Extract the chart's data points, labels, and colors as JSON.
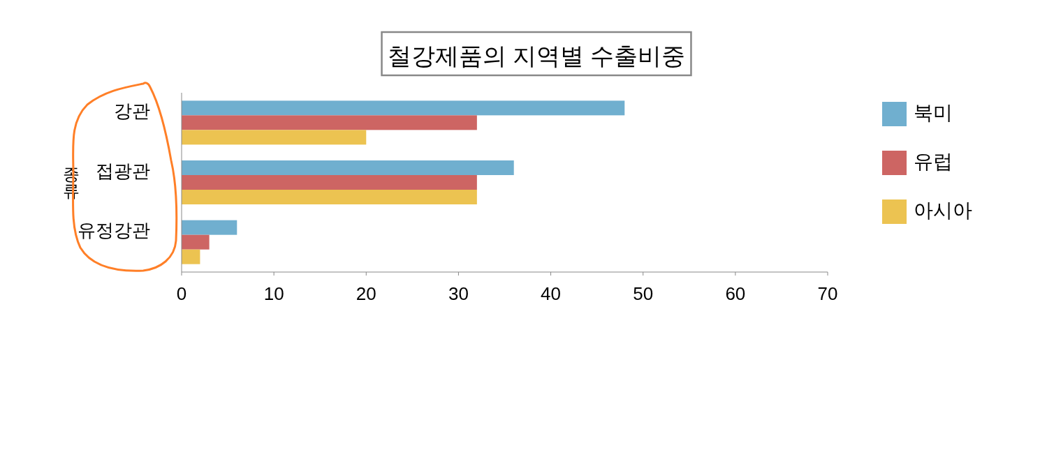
{
  "chart_data": {
    "type": "bar",
    "orientation": "horizontal",
    "title": "철강제품의 지역별 수출비중",
    "ylabel": "종류",
    "categories": [
      "강관",
      "접광관",
      "유정강관"
    ],
    "series": [
      {
        "name": "북미",
        "color": "#70afcf",
        "values": [
          48,
          36,
          6
        ]
      },
      {
        "name": "유럽",
        "color": "#cd6563",
        "values": [
          32,
          32,
          3
        ]
      },
      {
        "name": "아시아",
        "color": "#ecc351",
        "values": [
          20,
          32,
          2
        ]
      }
    ],
    "xlim": [
      0,
      70
    ],
    "xticks": [
      0,
      10,
      20,
      30,
      40,
      50,
      60,
      70
    ],
    "grid": false,
    "legend": "right"
  }
}
